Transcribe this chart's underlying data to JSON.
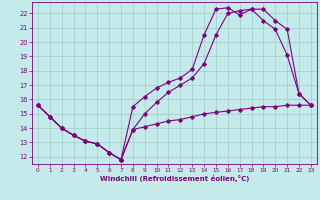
{
  "xlabel": "Windchill (Refroidissement éolien,°C)",
  "bg_color": "#c5eaea",
  "line_color": "#800080",
  "grid_color": "#a0cccc",
  "xlim": [
    -0.5,
    23.5
  ],
  "ylim": [
    11.5,
    22.8
  ],
  "yticks": [
    12,
    13,
    14,
    15,
    16,
    17,
    18,
    19,
    20,
    21,
    22
  ],
  "xticks": [
    0,
    1,
    2,
    3,
    4,
    5,
    6,
    7,
    8,
    9,
    10,
    11,
    12,
    13,
    14,
    15,
    16,
    17,
    18,
    19,
    20,
    21,
    22,
    23
  ],
  "series1_x": [
    0,
    1,
    2,
    3,
    4,
    5,
    6,
    7,
    8,
    9,
    10,
    11,
    12,
    13,
    14,
    15,
    16,
    17,
    18,
    19,
    20,
    21,
    22,
    23
  ],
  "series1_y": [
    15.6,
    14.8,
    14.0,
    13.5,
    13.1,
    12.9,
    12.3,
    11.8,
    13.9,
    14.1,
    14.3,
    14.5,
    14.6,
    14.8,
    15.0,
    15.1,
    15.2,
    15.3,
    15.4,
    15.5,
    15.5,
    15.6,
    15.6,
    15.6
  ],
  "series2_x": [
    0,
    1,
    2,
    3,
    4,
    5,
    6,
    7,
    8,
    9,
    10,
    11,
    12,
    13,
    14,
    15,
    16,
    17,
    18,
    19,
    20,
    21,
    22,
    23
  ],
  "series2_y": [
    15.6,
    14.8,
    14.0,
    13.5,
    13.1,
    12.9,
    12.3,
    11.8,
    15.5,
    16.2,
    16.8,
    17.2,
    17.5,
    18.1,
    20.5,
    22.3,
    22.4,
    21.9,
    22.3,
    21.5,
    20.9,
    19.1,
    16.4,
    15.6
  ],
  "series3_x": [
    0,
    1,
    2,
    3,
    4,
    5,
    6,
    7,
    8,
    9,
    10,
    11,
    12,
    13,
    14,
    15,
    16,
    17,
    18,
    19,
    20,
    21,
    22,
    23
  ],
  "series3_y": [
    15.6,
    14.8,
    14.0,
    13.5,
    13.1,
    12.9,
    12.3,
    11.8,
    13.9,
    15.0,
    15.8,
    16.5,
    17.0,
    17.5,
    18.5,
    20.5,
    22.0,
    22.2,
    22.3,
    22.3,
    21.5,
    20.9,
    16.4,
    15.6
  ]
}
